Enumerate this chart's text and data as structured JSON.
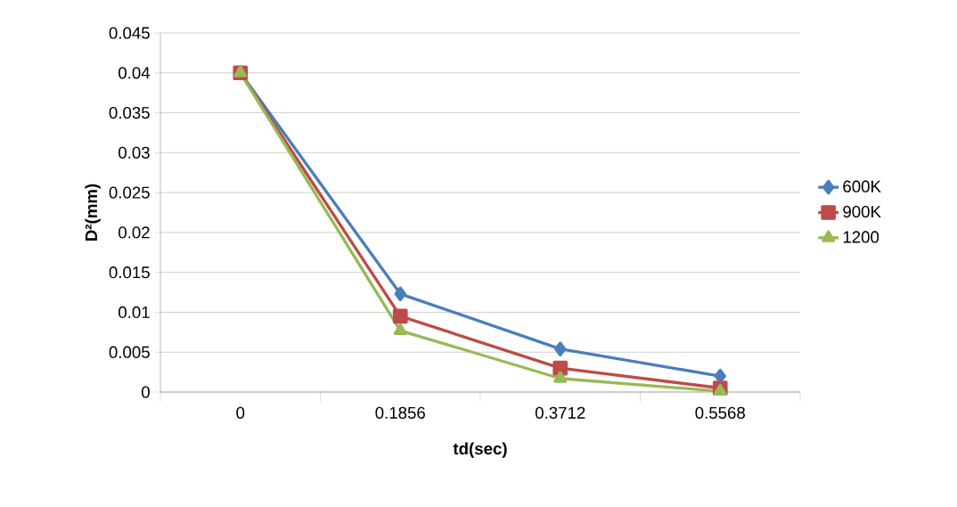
{
  "chart_data": {
    "type": "line",
    "xlabel": "td(sec)",
    "ylabel": "D²(mm)",
    "categories": [
      "0",
      "0.1856",
      "0.3712",
      "0.5568"
    ],
    "ylim": [
      0,
      0.045
    ],
    "yticks": [
      0,
      0.005,
      0.01,
      0.015,
      0.02,
      0.025,
      0.03,
      0.035,
      0.04,
      0.045
    ],
    "grid": "y",
    "legend": "right",
    "line_style": "solid",
    "series": [
      {
        "name": "600K",
        "color": "#4a7ebb",
        "marker": "diamond",
        "values": [
          0.04,
          0.0123,
          0.0054,
          0.002
        ]
      },
      {
        "name": "900K",
        "color": "#be4b48",
        "marker": "square",
        "values": [
          0.04,
          0.0095,
          0.003,
          0.0005
        ]
      },
      {
        "name": "1200",
        "color": "#98b954",
        "marker": "triangle",
        "values": [
          0.04,
          0.0077,
          0.0017,
          0.0001
        ]
      }
    ]
  }
}
